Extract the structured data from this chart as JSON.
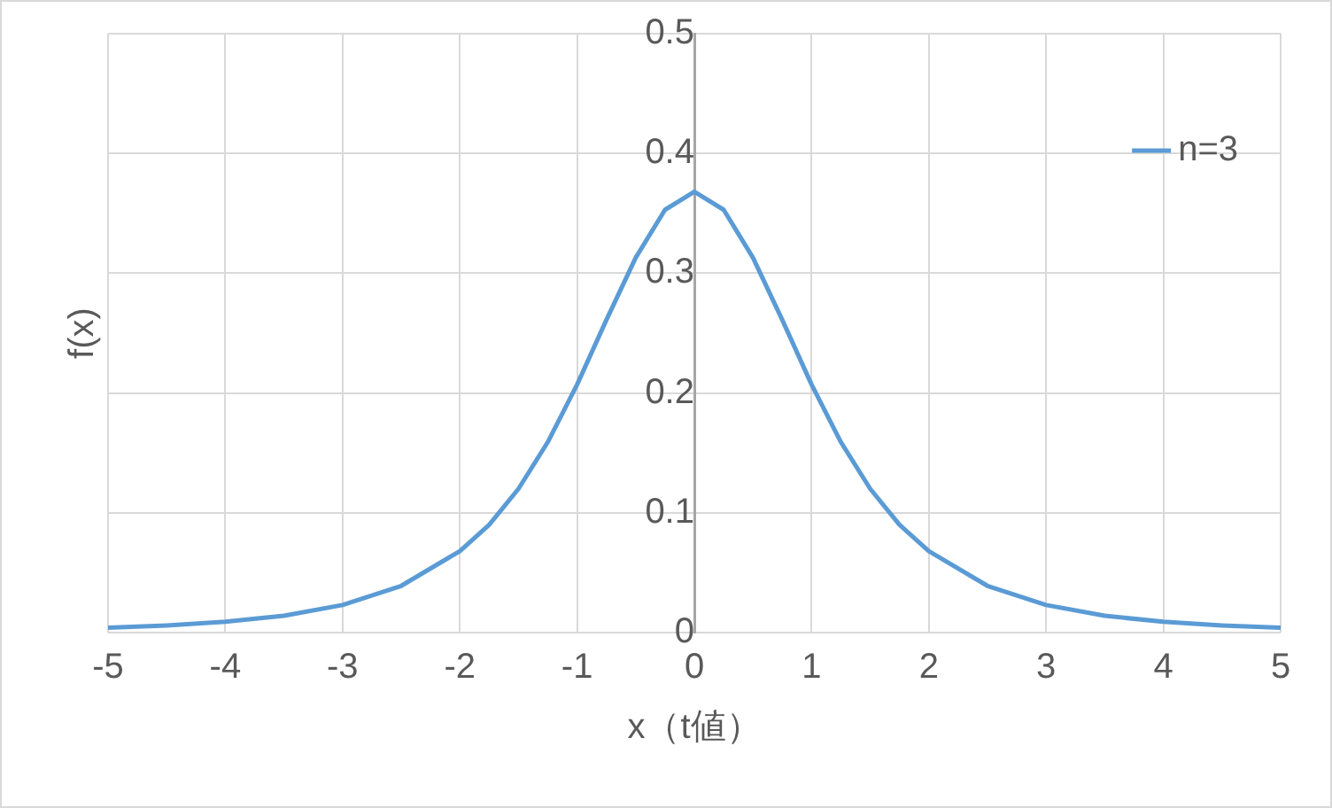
{
  "chart_data": {
    "type": "line",
    "xlabel": "x（t値）",
    "ylabel": "f(x)",
    "x": [
      -5,
      -4.5,
      -4,
      -3.5,
      -3,
      -2.5,
      -2,
      -1.75,
      -1.5,
      -1.25,
      -1,
      -0.75,
      -0.5,
      -0.25,
      0,
      0.25,
      0.5,
      0.75,
      1,
      1.25,
      1.5,
      1.75,
      2,
      2.5,
      3,
      3.5,
      4,
      4.5,
      5
    ],
    "series": [
      {
        "name": "n=3",
        "color": "#5b9bd5",
        "values": [
          0.004,
          0.006,
          0.009,
          0.014,
          0.023,
          0.039,
          0.068,
          0.09,
          0.12,
          0.159,
          0.207,
          0.261,
          0.313,
          0.353,
          0.368,
          0.353,
          0.313,
          0.261,
          0.207,
          0.159,
          0.12,
          0.09,
          0.068,
          0.039,
          0.023,
          0.014,
          0.009,
          0.006,
          0.004
        ]
      }
    ],
    "xlim": [
      -5,
      5
    ],
    "xticks": [
      -5,
      -4,
      -3,
      -2,
      -1,
      0,
      1,
      2,
      3,
      4,
      5
    ],
    "ylim": [
      0,
      0.5
    ],
    "yticks": [
      0,
      0.1,
      0.2,
      0.3,
      0.4,
      0.5
    ],
    "grid": true,
    "legend": "top right",
    "marker": "none",
    "line_style": "solid"
  }
}
